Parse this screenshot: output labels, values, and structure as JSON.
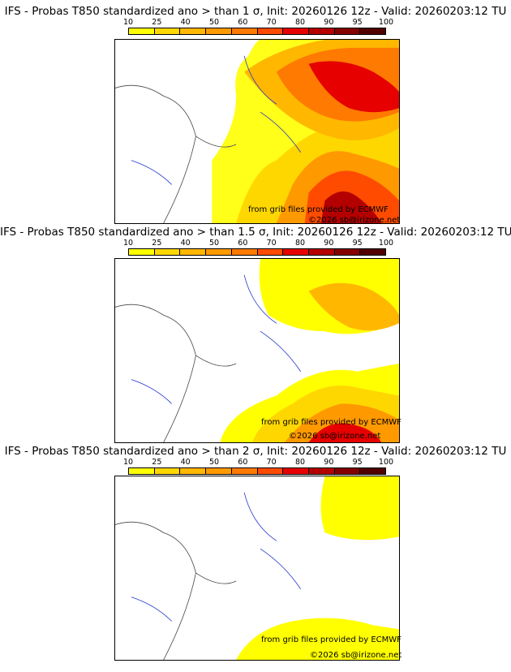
{
  "panels": [
    {
      "title": "IFS - Probas T850  standardized ano > than 1 σ, Init: 20260126 12z - Valid: 20260203:12 TU",
      "credit_source": "from grib files provided by ECMWF",
      "credit_copyright": "©2026 sb@irizone.net"
    },
    {
      "title": "IFS - Probas T850  standardized ano > than 1.5 σ, Init: 20260126 12z - Valid: 20260203:12 TU",
      "credit_source": "from grib files provided by ECMWF",
      "credit_copyright": "©2026 sb@irizone.net"
    },
    {
      "title": "IFS - Probas T850  standardized ano > than 2 σ, Init: 20260126 12z - Valid: 20260203:12 TU",
      "credit_source": "from grib files provided by ECMWF",
      "credit_copyright": "©2026 sb@irizone.net"
    }
  ],
  "scale": {
    "labels": [
      "10",
      "25",
      "40",
      "50",
      "60",
      "70",
      "80",
      "90",
      "95",
      "100"
    ],
    "colors": [
      "#ffff00",
      "#ffd700",
      "#ffb700",
      "#ff9900",
      "#ff7a00",
      "#ff4b00",
      "#e60000",
      "#b40000",
      "#850000",
      "#520000"
    ]
  },
  "colors": {
    "land_border": "#444444",
    "rivers": "#2233cc",
    "regions": "#aaaaaa"
  }
}
